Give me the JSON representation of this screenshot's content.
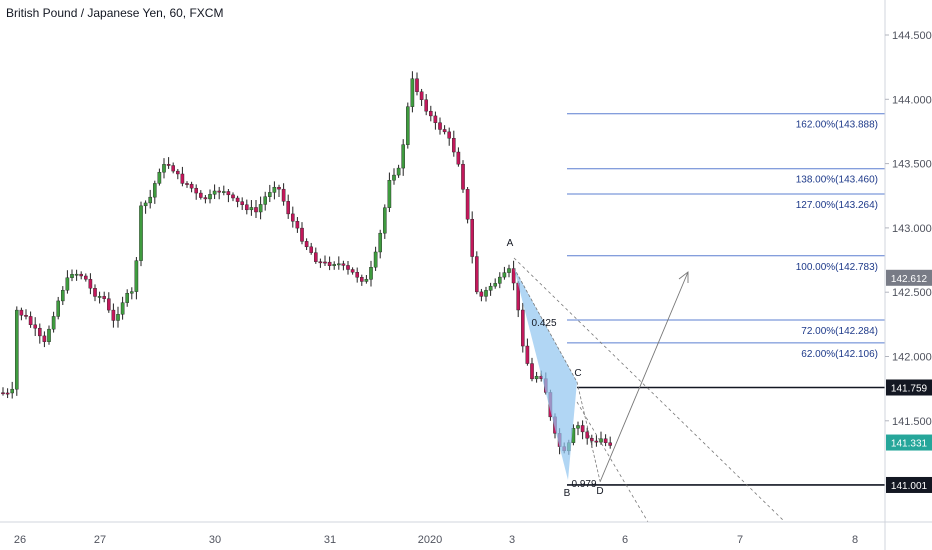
{
  "title": "British Pound / Japanese Yen, 60, FXCM",
  "chart_data": {
    "type": "candlestick",
    "symbol": "British Pound / Japanese Yen",
    "interval": "60",
    "source": "FXCM",
    "ylim": [
      140.6,
      144.85
    ],
    "y_ticks": [
      "144.500",
      "144.000",
      "143.500",
      "143.000",
      "142.500",
      "142.000",
      "141.500"
    ],
    "y_tick_values": [
      144.5,
      144.0,
      143.5,
      143.0,
      142.5,
      142.0,
      141.5
    ],
    "x_ticks": [
      "26",
      "27",
      "30",
      "31",
      "2020",
      "3",
      "6",
      "7",
      "8"
    ],
    "price_badges": [
      {
        "label": "142.612",
        "value": 142.612,
        "color": "#787b86"
      },
      {
        "label": "141.759",
        "value": 141.759,
        "color": "#131722"
      },
      {
        "label": "141.331",
        "value": 141.331,
        "color": "#26a69a"
      },
      {
        "label": "141.001",
        "value": 141.001,
        "color": "#131722"
      }
    ],
    "fib_levels": [
      {
        "label": "162.00%(143.888)",
        "value": 143.888
      },
      {
        "label": "138.00%(143.460)",
        "value": 143.46
      },
      {
        "label": "127.00%(143.264)",
        "value": 143.264
      },
      {
        "label": "100.00%(142.783)",
        "value": 142.783
      },
      {
        "label": "72.00%(142.284)",
        "value": 142.284
      },
      {
        "label": "62.00%(142.106)",
        "value": 142.106
      }
    ],
    "pattern_points": [
      {
        "label": "A",
        "value": 142.78
      },
      {
        "label": "B",
        "value": 141.0
      },
      {
        "label": "C",
        "value": 141.759
      },
      {
        "label": "D",
        "value": 141.01
      }
    ],
    "ratios": [
      "0.425",
      "0.979"
    ],
    "colors": {
      "up": "#3f9b3f",
      "down": "#c2185b",
      "fib": "#5b7fd1",
      "triangle": "#90c4f0"
    }
  }
}
